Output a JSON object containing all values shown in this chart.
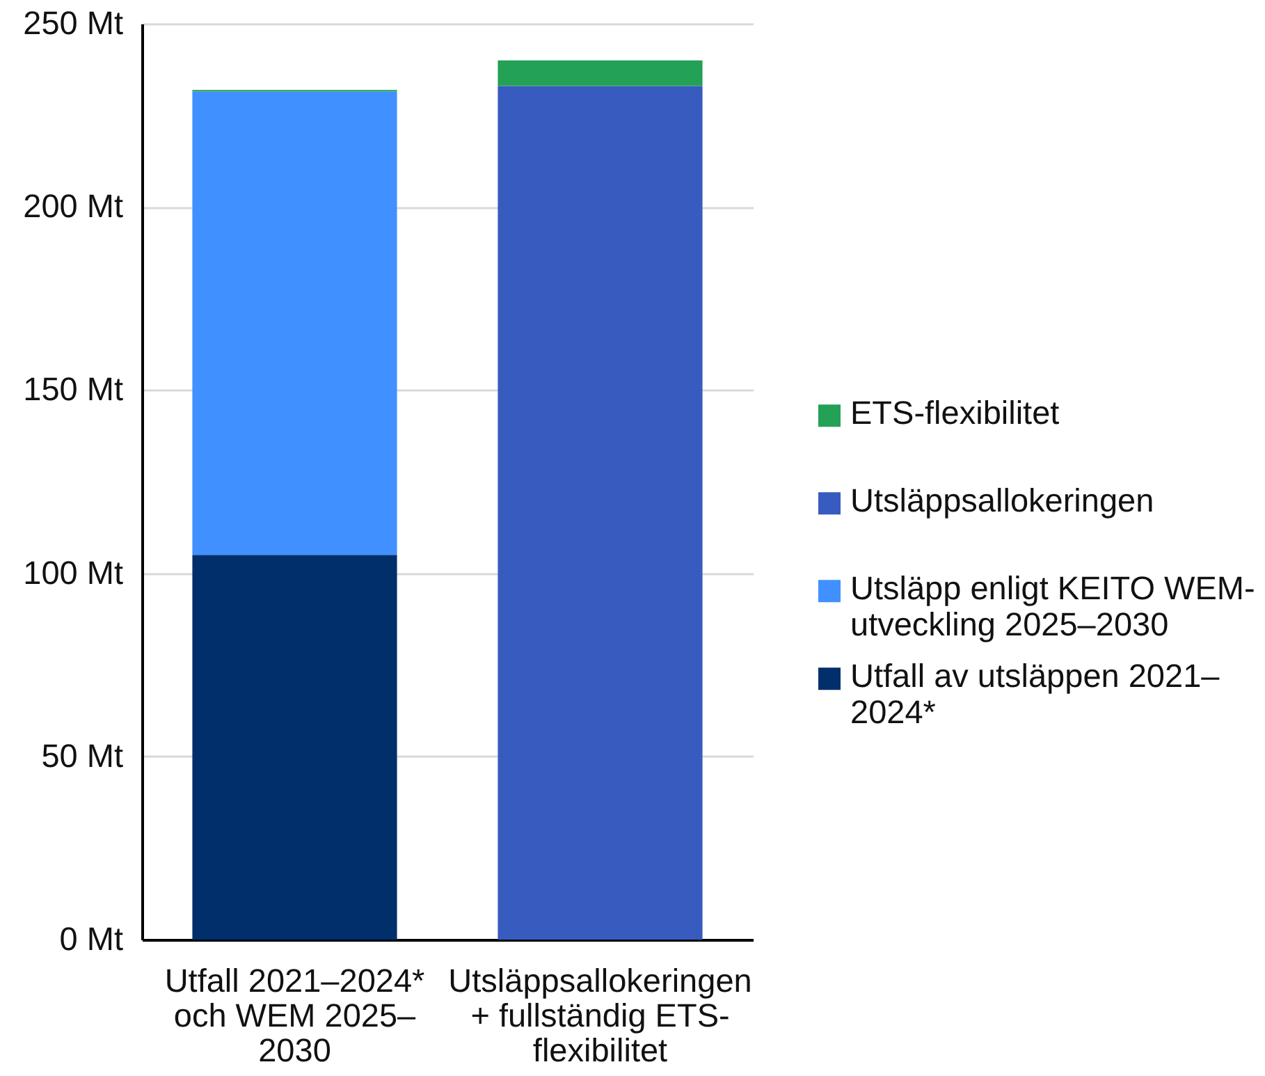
{
  "chart_data": {
    "type": "bar",
    "stacked": true,
    "categories": [
      "Utfall 2021–2024* och WEM 2025–2030",
      "Utsläppsallokeringen + fullständig ETS-flexibilitet"
    ],
    "series": [
      {
        "name": "Utfall av utsläppen 2021–2024*",
        "color": "#002f6c",
        "values": [
          105,
          null
        ]
      },
      {
        "name": "Utsläpp enligt KEITO WEM-utveckling 2025–2030",
        "color": "#4190ff",
        "values": [
          126.5,
          null
        ]
      },
      {
        "name": "Utsläppsallokeringen",
        "color": "#385bbf",
        "values": [
          null,
          233
        ]
      },
      {
        "name": "ETS-flexibilitet",
        "color": "#23a157",
        "values": [
          0.4,
          7
        ]
      }
    ],
    "ylim": [
      0,
      250
    ],
    "yticks": [
      {
        "value": 0,
        "label": "0 Mt"
      },
      {
        "value": 50,
        "label": "50 Mt"
      },
      {
        "value": 100,
        "label": "100 Mt"
      },
      {
        "value": 150,
        "label": "150 Mt"
      },
      {
        "value": 200,
        "label": "200 Mt"
      },
      {
        "value": 250,
        "label": "250 Mt"
      }
    ],
    "grid": "y",
    "legend": "right"
  }
}
